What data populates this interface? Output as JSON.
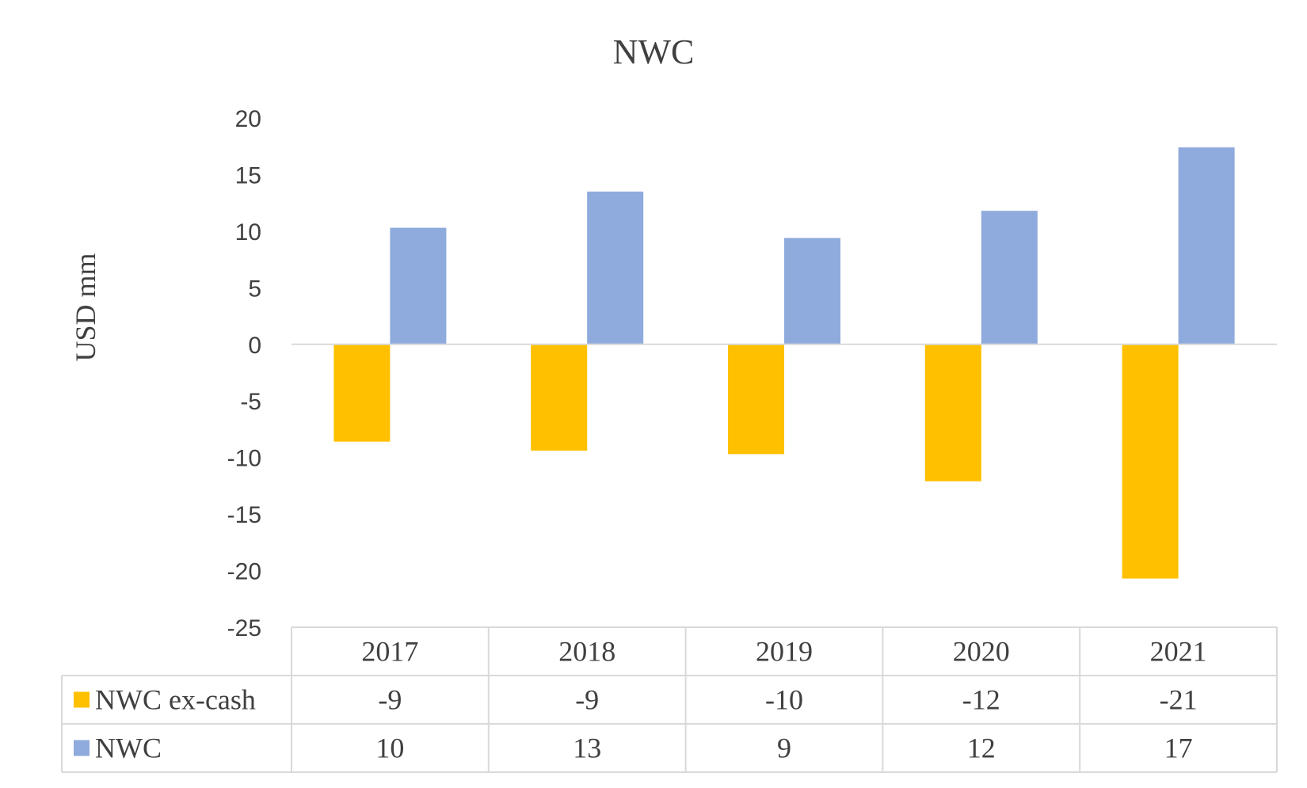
{
  "chart_data": {
    "type": "bar",
    "title": "NWC",
    "ylabel": "USD mm",
    "xlabel": "",
    "ylim": [
      -25,
      20
    ],
    "yticks": [
      20,
      15,
      10,
      5,
      0,
      -5,
      -10,
      -15,
      -20,
      -25
    ],
    "categories": [
      "2017",
      "2018",
      "2019",
      "2020",
      "2021"
    ],
    "series": [
      {
        "name": "NWC ex-cash",
        "color": "#FFC000",
        "values": [
          -8.6,
          -9.4,
          -9.7,
          -12.1,
          -20.7
        ],
        "table_labels": [
          "-9",
          "-9",
          "-10",
          "-12",
          "-21"
        ]
      },
      {
        "name": "NWC",
        "color": "#8FAADC",
        "values": [
          10.3,
          13.5,
          9.4,
          11.8,
          17.4
        ],
        "table_labels": [
          "10",
          "13",
          "9",
          "12",
          "17"
        ]
      }
    ],
    "grid": false,
    "legend": "data-table"
  }
}
